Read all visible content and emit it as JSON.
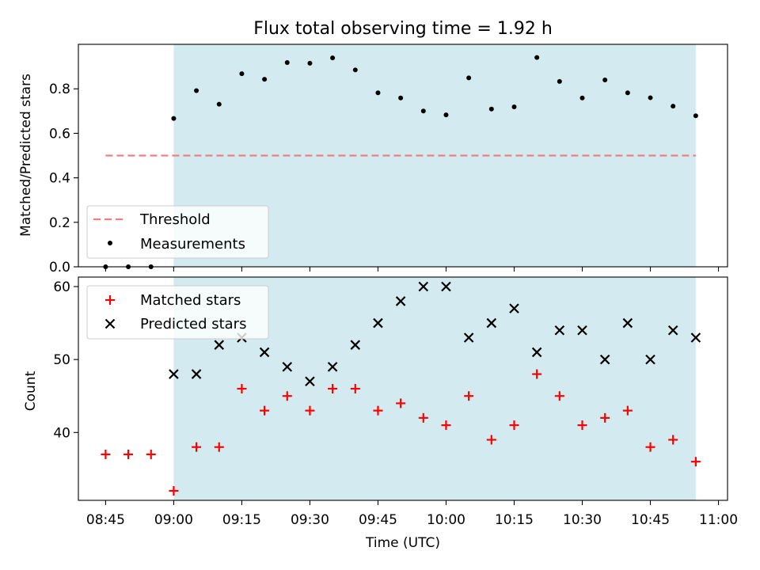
{
  "figure": {
    "title": "Flux total observing time = 1.92 h",
    "xlabel": "Time (UTC)",
    "xticks": [
      "08:45",
      "09:00",
      "09:15",
      "09:30",
      "09:45",
      "10:00",
      "10:15",
      "10:30",
      "10:45",
      "11:00"
    ]
  },
  "colors": {
    "span": "#d3eaf0",
    "threshold": "#f08080",
    "measurements": "#000000",
    "matched": "#ff0000",
    "predicted": "#000000"
  },
  "chart_data": [
    {
      "type": "scatter",
      "ylabel": "Matched/Predicted stars",
      "xlim": [
        "08:39",
        "11:02"
      ],
      "ylim": [
        0,
        1.0
      ],
      "yticks": [
        "0.0",
        "0.2",
        "0.4",
        "0.6",
        "0.8"
      ],
      "shaded_span": [
        "09:00",
        "10:55"
      ],
      "legend": {
        "placement": "lower left",
        "entries": [
          "Threshold",
          "Measurements"
        ]
      },
      "threshold": {
        "name": "Threshold",
        "value": 0.5,
        "x_range": [
          "08:45",
          "10:55"
        ],
        "style": "dashed"
      },
      "series": [
        {
          "name": "Measurements",
          "marker": "dot",
          "x": [
            "08:45",
            "08:50",
            "08:55",
            "09:00",
            "09:05",
            "09:10",
            "09:15",
            "09:20",
            "09:25",
            "09:30",
            "09:35",
            "09:40",
            "09:45",
            "09:50",
            "09:55",
            "10:00",
            "10:05",
            "10:10",
            "10:15",
            "10:20",
            "10:25",
            "10:30",
            "10:35",
            "10:40",
            "10:45",
            "10:50",
            "10:55"
          ],
          "y": [
            0.0,
            0.0,
            0.0,
            0.667,
            0.792,
            0.731,
            0.868,
            0.843,
            0.918,
            0.915,
            0.939,
            0.885,
            0.782,
            0.759,
            0.7,
            0.683,
            0.849,
            0.709,
            0.719,
            0.941,
            0.833,
            0.759,
            0.84,
            0.782,
            0.76,
            0.722,
            0.679
          ]
        }
      ]
    },
    {
      "type": "scatter",
      "ylabel": "Count",
      "xlim": [
        "08:39",
        "11:02"
      ],
      "ylim": [
        30.7,
        61.3
      ],
      "yticks": [
        "40",
        "50",
        "60"
      ],
      "shaded_span": [
        "09:00",
        "10:55"
      ],
      "legend": {
        "placement": "upper left",
        "entries": [
          "Matched stars",
          "Predicted stars"
        ]
      },
      "series": [
        {
          "name": "Matched stars",
          "marker": "plus",
          "x": [
            "08:45",
            "08:50",
            "08:55",
            "09:00",
            "09:05",
            "09:10",
            "09:15",
            "09:20",
            "09:25",
            "09:30",
            "09:35",
            "09:40",
            "09:45",
            "09:50",
            "09:55",
            "10:00",
            "10:05",
            "10:10",
            "10:15",
            "10:20",
            "10:25",
            "10:30",
            "10:35",
            "10:40",
            "10:45",
            "10:50",
            "10:55"
          ],
          "y": [
            37,
            37,
            37,
            32,
            38,
            38,
            46,
            43,
            45,
            43,
            46,
            46,
            43,
            44,
            42,
            41,
            45,
            39,
            41,
            48,
            45,
            41,
            42,
            43,
            38,
            39,
            36
          ]
        },
        {
          "name": "Predicted stars",
          "marker": "x",
          "x": [
            "09:00",
            "09:05",
            "09:10",
            "09:15",
            "09:20",
            "09:25",
            "09:30",
            "09:35",
            "09:40",
            "09:45",
            "09:50",
            "09:55",
            "10:00",
            "10:05",
            "10:10",
            "10:15",
            "10:20",
            "10:25",
            "10:30",
            "10:35",
            "10:40",
            "10:45",
            "10:50",
            "10:55"
          ],
          "y": [
            48,
            48,
            52,
            53,
            51,
            49,
            47,
            49,
            52,
            55,
            58,
            60,
            60,
            53,
            55,
            57,
            51,
            54,
            54,
            50,
            55,
            50,
            54,
            53
          ]
        }
      ]
    }
  ]
}
